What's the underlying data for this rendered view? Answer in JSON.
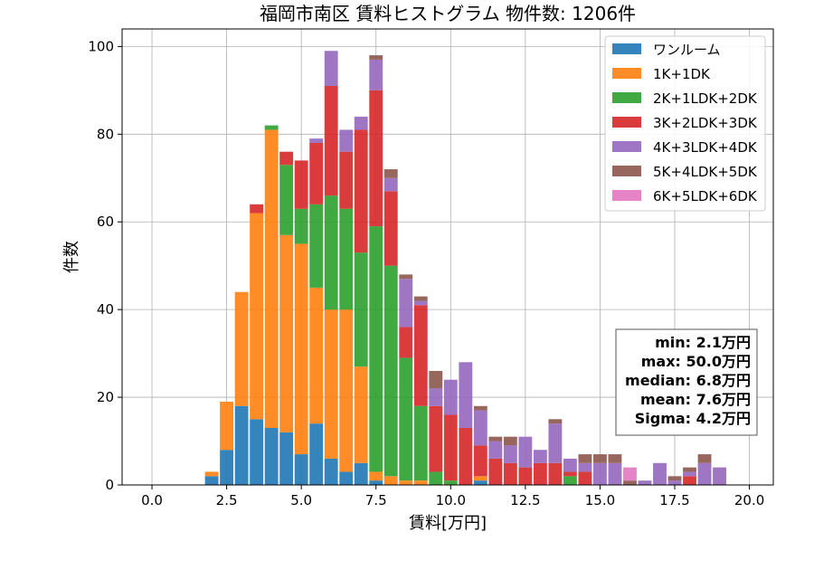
{
  "chart_data": {
    "type": "bar",
    "stacked": true,
    "title": "福岡市南区 賃料ヒストグラム 物件数: 1206件",
    "xlabel": "賃料[万円]",
    "ylabel": "件数",
    "xlim": [
      -1.0,
      20.8
    ],
    "ylim": [
      0,
      104
    ],
    "bin_width": 0.5,
    "x": [
      2.0,
      2.5,
      3.0,
      3.5,
      4.0,
      4.5,
      5.0,
      5.5,
      6.0,
      6.5,
      7.0,
      7.5,
      8.0,
      8.5,
      9.0,
      9.5,
      10.0,
      10.5,
      11.0,
      11.5,
      12.0,
      12.5,
      13.0,
      13.5,
      14.0,
      14.5,
      15.0,
      15.5,
      16.0,
      16.5,
      17.0,
      17.5,
      18.0,
      18.5,
      19.0,
      19.5
    ],
    "xticks": [
      0.0,
      2.5,
      5.0,
      7.5,
      10.0,
      12.5,
      15.0,
      17.5,
      20.0
    ],
    "xtick_labels": [
      "0.0",
      "2.5",
      "5.0",
      "7.5",
      "10.0",
      "12.5",
      "15.0",
      "17.5",
      "20.0"
    ],
    "yticks": [
      0,
      20,
      40,
      60,
      80,
      100
    ],
    "ytick_labels": [
      "0",
      "20",
      "40",
      "60",
      "80",
      "100"
    ],
    "grid": true,
    "legend_position": "top-right",
    "series": [
      {
        "name": "ワンルーム",
        "color": "#1f77b4",
        "values": [
          2,
          8,
          18,
          15,
          13,
          12,
          7,
          14,
          6,
          3,
          5,
          1,
          0,
          0,
          0,
          0,
          0,
          0,
          1,
          0,
          0,
          0,
          0,
          0,
          0,
          0,
          0,
          0,
          0,
          0,
          0,
          0,
          0,
          0,
          0,
          0
        ]
      },
      {
        "name": "1K+1DK",
        "color": "#ff7f0e",
        "values": [
          1,
          11,
          26,
          47,
          68,
          45,
          48,
          31,
          34,
          37,
          22,
          2,
          2,
          1,
          1,
          0,
          0,
          0,
          1,
          0,
          0,
          0,
          0,
          0,
          0,
          0,
          0,
          0,
          0,
          0,
          0,
          0,
          0,
          0,
          0,
          0
        ]
      },
      {
        "name": "2K+1LDK+2DK",
        "color": "#2ca02c",
        "values": [
          0,
          0,
          0,
          0,
          1,
          16,
          8,
          19,
          26,
          23,
          26,
          56,
          48,
          28,
          17,
          3,
          1,
          0,
          0,
          0,
          0,
          0,
          0,
          0,
          2,
          0,
          0,
          0,
          0,
          0,
          0,
          0,
          0,
          0,
          0,
          0
        ]
      },
      {
        "name": "3K+2LDK+3DK",
        "color": "#d62728",
        "values": [
          0,
          0,
          0,
          2,
          0,
          3,
          11,
          14,
          25,
          13,
          28,
          31,
          17,
          7,
          23,
          15,
          15,
          13,
          7,
          6,
          5,
          4,
          5,
          5,
          1,
          3,
          0,
          0,
          0,
          0,
          0,
          0,
          2,
          0,
          0,
          0
        ]
      },
      {
        "name": "4K+3LDK+4DK",
        "color": "#9467bd",
        "values": [
          0,
          0,
          0,
          0,
          0,
          0,
          0,
          1,
          8,
          5,
          3,
          7,
          3,
          11,
          1,
          4,
          8,
          15,
          8,
          4,
          4,
          7,
          3,
          9,
          3,
          2,
          5,
          5,
          0,
          1,
          5,
          1,
          1,
          5,
          4,
          0
        ]
      },
      {
        "name": "5K+4LDK+5DK",
        "color": "#8c564b",
        "values": [
          0,
          0,
          0,
          0,
          0,
          0,
          0,
          0,
          0,
          0,
          0,
          1,
          2,
          1,
          1,
          4,
          0,
          0,
          1,
          1,
          2,
          0,
          0,
          1,
          0,
          2,
          2,
          2,
          1,
          0,
          0,
          1,
          1,
          2,
          0,
          0
        ]
      },
      {
        "name": "6K+5LDK+6DK",
        "color": "#e377c2",
        "values": [
          0,
          0,
          0,
          0,
          0,
          0,
          0,
          0,
          0,
          0,
          0,
          0,
          0,
          0,
          0,
          0,
          0,
          0,
          0,
          0,
          0,
          0,
          0,
          0,
          0,
          0,
          0,
          0,
          3,
          0,
          0,
          0,
          0,
          0,
          0,
          0
        ]
      }
    ]
  },
  "stats": {
    "lines": [
      "min: 2.1万円",
      "max: 50.0万円",
      "median: 6.8万円",
      "mean: 7.6万円",
      "Sigma: 4.2万円"
    ]
  }
}
